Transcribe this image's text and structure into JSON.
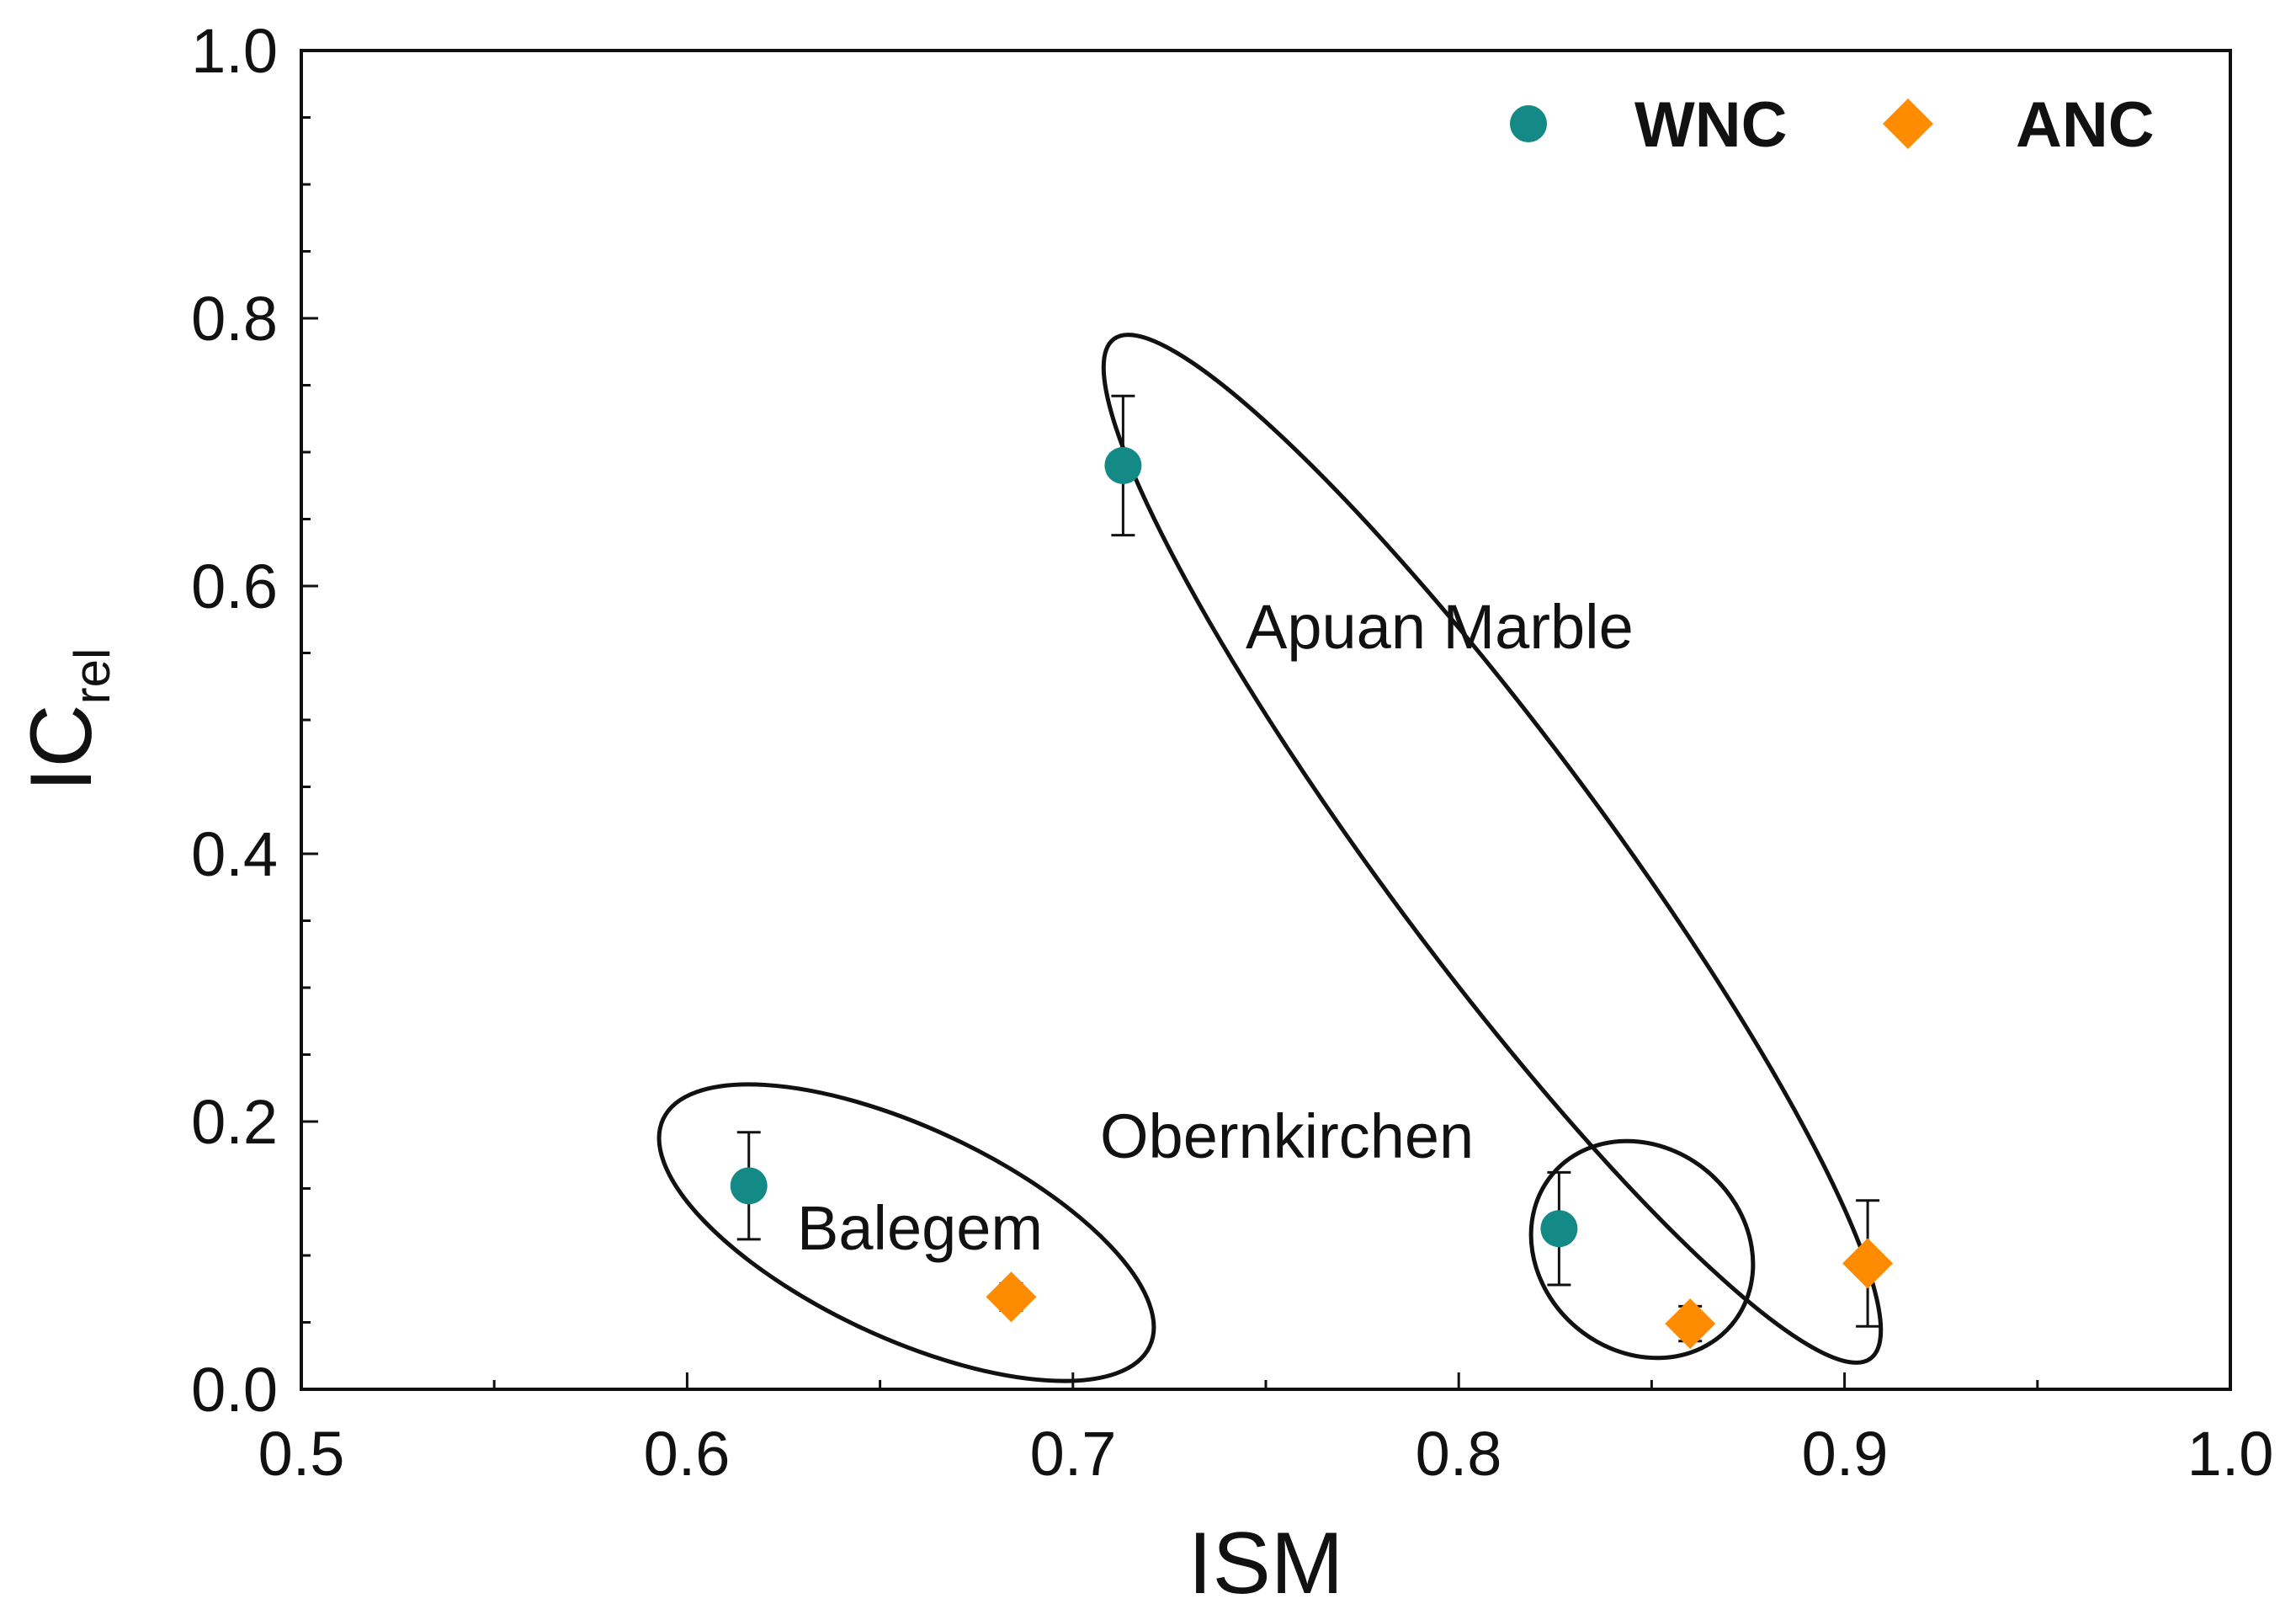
{
  "chart_data": {
    "type": "scatter",
    "title": "",
    "xlabel": "ISM",
    "ylabel_main": "IC",
    "ylabel_sub": "rel",
    "xlim": [
      0.5,
      1.0
    ],
    "ylim": [
      0.0,
      1.0
    ],
    "x_ticks": [
      "0.5",
      "0.6",
      "0.7",
      "0.8",
      "0.9",
      "1.0"
    ],
    "y_ticks": [
      "0.0",
      "0.2",
      "0.4",
      "0.6",
      "0.8",
      "1.0"
    ],
    "legend_position": "top-right",
    "series": [
      {
        "name": "WNC",
        "color": "#148a87",
        "marker": "circle",
        "points": [
          {
            "x": 0.616,
            "y": 0.152,
            "err": 0.04
          },
          {
            "x": 0.713,
            "y": 0.69,
            "err": 0.052
          },
          {
            "x": 0.826,
            "y": 0.12,
            "err": 0.042
          }
        ]
      },
      {
        "name": "ANC",
        "color": "#ff8c00",
        "marker": "diamond",
        "points": [
          {
            "x": 0.684,
            "y": 0.069,
            "err": 0.01
          },
          {
            "x": 0.86,
            "y": 0.049,
            "err": 0.013
          },
          {
            "x": 0.906,
            "y": 0.094,
            "err": 0.047
          }
        ]
      }
    ],
    "annotations": [
      {
        "text": "Apuan Marble",
        "x": 0.745,
        "y": 0.565
      },
      {
        "text": "Obernkirchen",
        "x": 0.707,
        "y": 0.187
      },
      {
        "text": "Balegem",
        "x": 0.63,
        "y": 0.118
      }
    ]
  }
}
